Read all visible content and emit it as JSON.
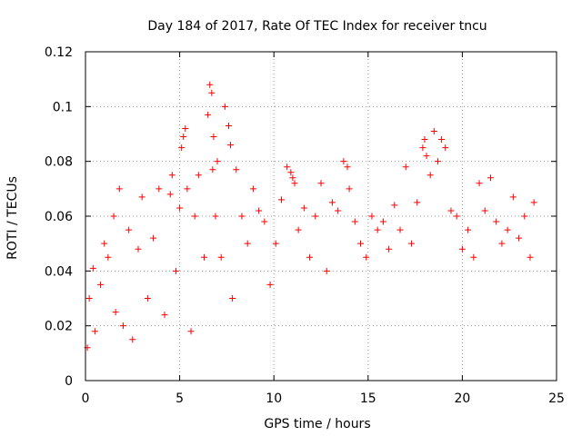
{
  "chart_data": {
    "type": "scatter",
    "title": "Day 184 of 2017, Rate Of TEC Index for receiver tncu",
    "xlabel": "GPS time / hours",
    "ylabel": "ROTI / TECUs",
    "xlim": [
      0,
      25
    ],
    "ylim": [
      0,
      0.12
    ],
    "x_ticks": [
      "0",
      "5",
      "10",
      "15",
      "20",
      "25"
    ],
    "y_ticks": [
      "0",
      "0.02",
      "0.04",
      "0.06",
      "0.08",
      "0.1",
      "0.12"
    ],
    "x_tick_values": [
      0,
      5,
      10,
      15,
      20,
      25
    ],
    "y_tick_values": [
      0,
      0.02,
      0.04,
      0.06,
      0.08,
      0.1,
      0.12
    ],
    "grid": true,
    "marker": "plus",
    "marker_color": "#ff0000",
    "series": [
      {
        "x": [
          0.1,
          0.2,
          0.4,
          0.5,
          0.8,
          1.0,
          1.2,
          1.5,
          1.6,
          1.8,
          2.0,
          2.3,
          2.5,
          2.8,
          3.0,
          3.3,
          3.6,
          3.9,
          4.2,
          4.5,
          4.6,
          4.8,
          5.0,
          5.1,
          5.2,
          5.3,
          5.4,
          5.6,
          5.8,
          6.0,
          6.3,
          6.5,
          6.6,
          6.7,
          6.75,
          6.8,
          6.9,
          7.0,
          7.2,
          7.4,
          7.6,
          7.7,
          7.8,
          8.0,
          8.3,
          8.6,
          8.9,
          9.2,
          9.5,
          9.8,
          10.1,
          10.4,
          10.7,
          10.9,
          11.0,
          11.1,
          11.3,
          11.6,
          11.9,
          12.2,
          12.5,
          12.8,
          13.1,
          13.4,
          13.7,
          13.9,
          14.0,
          14.3,
          14.6,
          14.9,
          15.2,
          15.5,
          15.8,
          16.1,
          16.4,
          16.7,
          17.0,
          17.3,
          17.6,
          17.9,
          18.0,
          18.1,
          18.3,
          18.5,
          18.7,
          18.9,
          19.1,
          19.4,
          19.7,
          20.0,
          20.3,
          20.6,
          20.9,
          21.2,
          21.5,
          21.8,
          22.1,
          22.4,
          22.7,
          23.0,
          23.3,
          23.6,
          23.8
        ],
        "y": [
          0.012,
          0.03,
          0.041,
          0.018,
          0.035,
          0.05,
          0.045,
          0.06,
          0.025,
          0.07,
          0.02,
          0.055,
          0.015,
          0.048,
          0.067,
          0.03,
          0.052,
          0.07,
          0.024,
          0.068,
          0.075,
          0.04,
          0.063,
          0.085,
          0.089,
          0.092,
          0.07,
          0.018,
          0.06,
          0.075,
          0.045,
          0.097,
          0.108,
          0.105,
          0.077,
          0.089,
          0.06,
          0.08,
          0.045,
          0.1,
          0.093,
          0.086,
          0.03,
          0.077,
          0.06,
          0.05,
          0.07,
          0.062,
          0.058,
          0.035,
          0.05,
          0.066,
          0.078,
          0.076,
          0.074,
          0.072,
          0.055,
          0.063,
          0.045,
          0.06,
          0.072,
          0.04,
          0.065,
          0.062,
          0.08,
          0.078,
          0.07,
          0.058,
          0.05,
          0.045,
          0.06,
          0.055,
          0.058,
          0.048,
          0.064,
          0.055,
          0.078,
          0.05,
          0.065,
          0.085,
          0.088,
          0.082,
          0.075,
          0.091,
          0.08,
          0.088,
          0.085,
          0.062,
          0.06,
          0.048,
          0.055,
          0.045,
          0.072,
          0.062,
          0.074,
          0.058,
          0.05,
          0.055,
          0.067,
          0.052,
          0.06,
          0.045,
          0.065
        ]
      }
    ]
  }
}
